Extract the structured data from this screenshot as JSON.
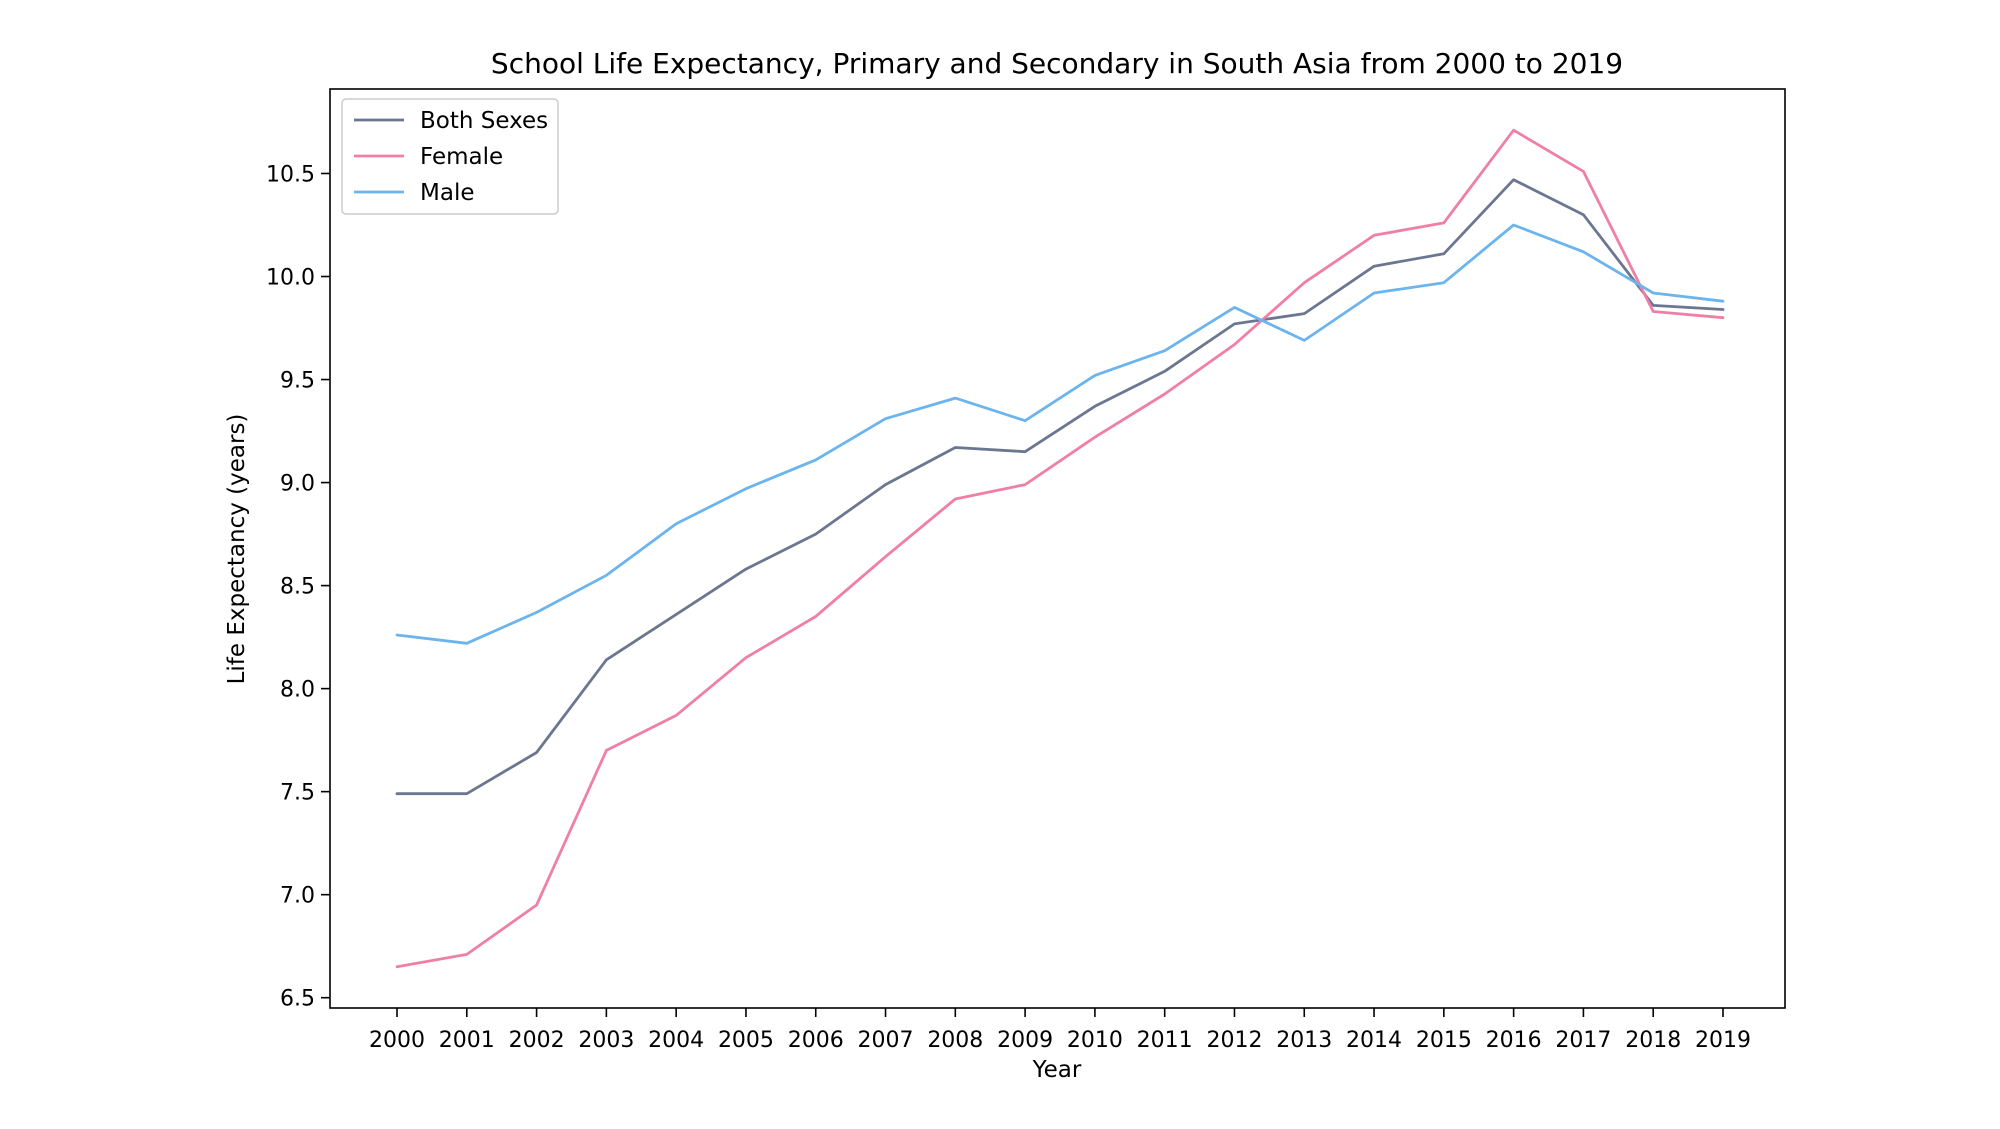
{
  "chart_data": {
    "type": "line",
    "title": "School Life Expectancy, Primary and Secondary in South Asia from 2000 to 2019",
    "xlabel": "Year",
    "ylabel": "Life Expectancy (years)",
    "ylim": [
      6.45,
      10.91
    ],
    "yticks": [
      6.5,
      7.0,
      7.5,
      8.0,
      8.5,
      9.0,
      9.5,
      10.0,
      10.5
    ],
    "ytick_labels": [
      "6.5",
      "7.0",
      "7.5",
      "8.0",
      "8.5",
      "9.0",
      "9.5",
      "10.0",
      "10.5"
    ],
    "categories": [
      "2000",
      "2001",
      "2002",
      "2003",
      "2004",
      "2005",
      "2006",
      "2007",
      "2008",
      "2009",
      "2010",
      "2011",
      "2012",
      "2013",
      "2014",
      "2015",
      "2016",
      "2017",
      "2018",
      "2019"
    ],
    "legend_position": "top-left",
    "grid": false,
    "series": [
      {
        "name": "Both Sexes",
        "color": "#6b7690",
        "values": [
          7.49,
          7.49,
          7.69,
          8.14,
          8.36,
          8.58,
          8.75,
          8.99,
          9.17,
          9.15,
          9.37,
          9.54,
          9.77,
          9.82,
          10.05,
          10.11,
          10.47,
          10.3,
          9.86,
          9.84
        ]
      },
      {
        "name": "Female",
        "color": "#f07fa8",
        "values": [
          6.65,
          6.71,
          6.95,
          7.7,
          7.87,
          8.15,
          8.35,
          8.64,
          8.92,
          8.99,
          9.22,
          9.43,
          9.67,
          9.97,
          10.2,
          10.26,
          10.71,
          10.51,
          9.83,
          9.8
        ]
      },
      {
        "name": "Male",
        "color": "#6cb4ee",
        "values": [
          8.26,
          8.22,
          8.37,
          8.55,
          8.8,
          8.97,
          9.11,
          9.31,
          9.41,
          9.3,
          9.52,
          9.64,
          9.85,
          9.69,
          9.92,
          9.97,
          10.25,
          10.12,
          9.92,
          9.88
        ]
      }
    ]
  }
}
